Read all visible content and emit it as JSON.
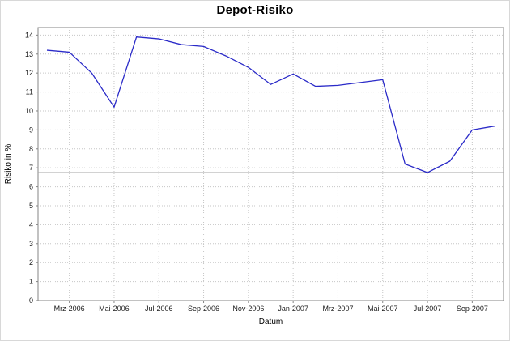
{
  "chart_data": {
    "type": "line",
    "title": "Depot-Risiko",
    "xlabel": "Datum",
    "ylabel": "Risiko in %",
    "legend": "none",
    "grid": true,
    "x": [
      "Feb-2006",
      "Mrz-2006",
      "Apr-2006",
      "Mai-2006",
      "Jun-2006",
      "Jul-2006",
      "Aug-2006",
      "Sep-2006",
      "Okt-2006",
      "Nov-2006",
      "Dez-2006",
      "Jan-2007",
      "Feb-2007",
      "Mrz-2007",
      "Apr-2007",
      "Mai-2007",
      "Jun-2007",
      "Jul-2007",
      "Aug-2007",
      "Sep-2007",
      "Okt-2007"
    ],
    "values": [
      13.2,
      13.1,
      12.0,
      10.2,
      13.9,
      13.8,
      13.5,
      13.4,
      12.9,
      12.3,
      11.4,
      11.95,
      11.3,
      11.35,
      11.5,
      11.65,
      7.2,
      6.75,
      7.35,
      9.0,
      9.2
    ],
    "x_tick_labels": [
      "Mrz-2006",
      "Mai-2006",
      "Jul-2006",
      "Sep-2006",
      "Nov-2006",
      "Jan-2007",
      "Mrz-2007",
      "Mai-2007",
      "Jul-2007",
      "Sep-2007"
    ],
    "x_tick_indices": [
      1,
      3,
      5,
      7,
      9,
      11,
      13,
      15,
      17,
      19
    ],
    "y_ticks": [
      0,
      1,
      2,
      3,
      4,
      5,
      6,
      7,
      8,
      9,
      10,
      11,
      12,
      13,
      14
    ],
    "ylim": [
      0,
      14.4
    ],
    "marker_line_y": 6.75,
    "colors": {
      "line": "#2a2ac8",
      "grid": "#c6c6c6",
      "marker": "#a6a6a6",
      "plot_border": "#848484",
      "tick_text": "#1a1a1a",
      "axis_title_text": "#000000",
      "plot_background": "#ffffff"
    }
  }
}
